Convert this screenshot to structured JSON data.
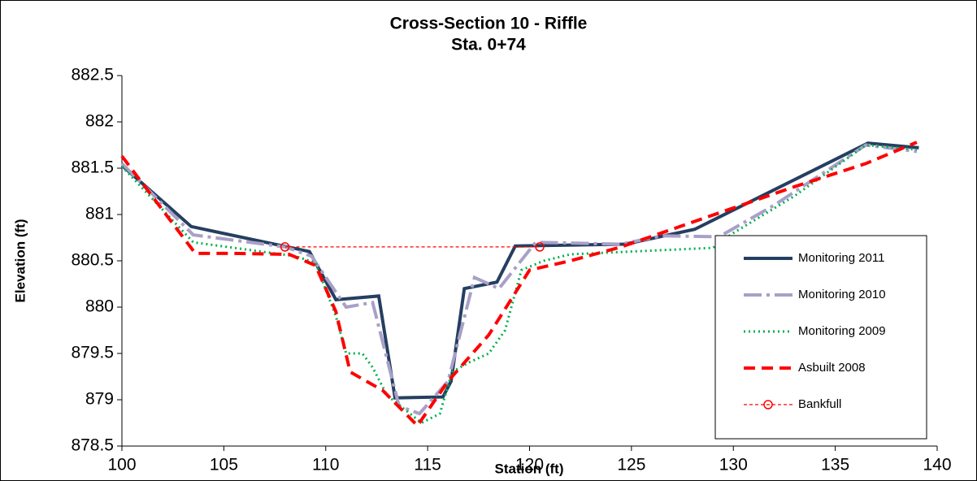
{
  "chart_data": {
    "type": "line",
    "title": "Cross-Section 10 - Riffle",
    "subtitle": "Sta. 0+74",
    "x_label": "Station (ft)",
    "y_label": "Elevation (ft)",
    "xlim": [
      100,
      140
    ],
    "xticks": [
      100,
      105,
      110,
      115,
      120,
      125,
      130,
      135,
      140
    ],
    "ylim": [
      878.5,
      882.5
    ],
    "yticks": [
      878.5,
      879,
      879.5,
      880,
      880.5,
      881,
      881.5,
      882,
      882.5
    ],
    "grid": false,
    "legend": "bottom-right",
    "series": [
      {
        "name": "Monitoring 2011",
        "color": "#243f60",
        "style": "solid",
        "x": [
          100,
          103.4,
          109.2,
          110.5,
          112.6,
          113.4,
          115.75,
          116.15,
          116.8,
          118.4,
          119.3,
          124.7,
          128.1,
          136.6,
          139.1
        ],
        "values": [
          881.53,
          880.87,
          880.6,
          880.08,
          880.12,
          879.02,
          879.03,
          879.2,
          880.2,
          880.27,
          880.66,
          880.68,
          880.84,
          881.77,
          881.72
        ]
      },
      {
        "name": "Monitoring 2010",
        "color": "#a9a0c8",
        "style": "dashdot",
        "x": [
          100,
          103.5,
          108,
          109.3,
          111,
          112.3,
          113.6,
          114.6,
          116,
          117.3,
          118.5,
          120.3,
          124.5,
          126.5,
          129.3,
          132,
          136.5,
          139
        ],
        "values": [
          881.55,
          880.78,
          880.65,
          880.55,
          880.0,
          880.05,
          878.93,
          878.85,
          879.2,
          880.32,
          880.2,
          880.7,
          880.68,
          880.77,
          880.76,
          881.1,
          881.75,
          881.68
        ]
      },
      {
        "name": "Monitoring 2009",
        "color": "#00b050",
        "style": "dotted",
        "x": [
          100,
          103.5,
          108.5,
          109.5,
          110.5,
          111,
          111.8,
          112.3,
          113,
          114.7,
          115.6,
          116.2,
          117,
          118,
          118.8,
          119.6,
          120.7,
          122,
          125,
          129,
          130,
          133,
          136.5,
          139
        ],
        "values": [
          881.52,
          880.7,
          880.55,
          880.48,
          879.9,
          879.5,
          879.5,
          879.35,
          879.05,
          878.75,
          878.85,
          879.3,
          879.4,
          879.5,
          879.75,
          880.4,
          880.5,
          880.57,
          880.6,
          880.64,
          880.8,
          881.2,
          881.75,
          881.7
        ]
      },
      {
        "name": "Asbuilt 2008",
        "color": "#ff0000",
        "style": "dashed",
        "x": [
          100,
          103.6,
          105.5,
          108.2,
          109.5,
          110.5,
          111.2,
          112,
          112.8,
          114.5,
          116,
          117,
          118,
          120,
          122,
          124.5,
          133,
          136.5,
          139
        ],
        "values": [
          881.63,
          880.58,
          880.58,
          880.57,
          880.45,
          879.95,
          879.3,
          879.2,
          879.1,
          878.72,
          879.2,
          879.45,
          879.7,
          880.4,
          880.5,
          880.65,
          881.3,
          881.55,
          881.78
        ]
      },
      {
        "name": "Bankfull",
        "color": "#ff0000",
        "style": "thin-dashed",
        "marker": "circle",
        "x": [
          108,
          120.5
        ],
        "values": [
          880.65,
          880.65
        ]
      }
    ]
  }
}
